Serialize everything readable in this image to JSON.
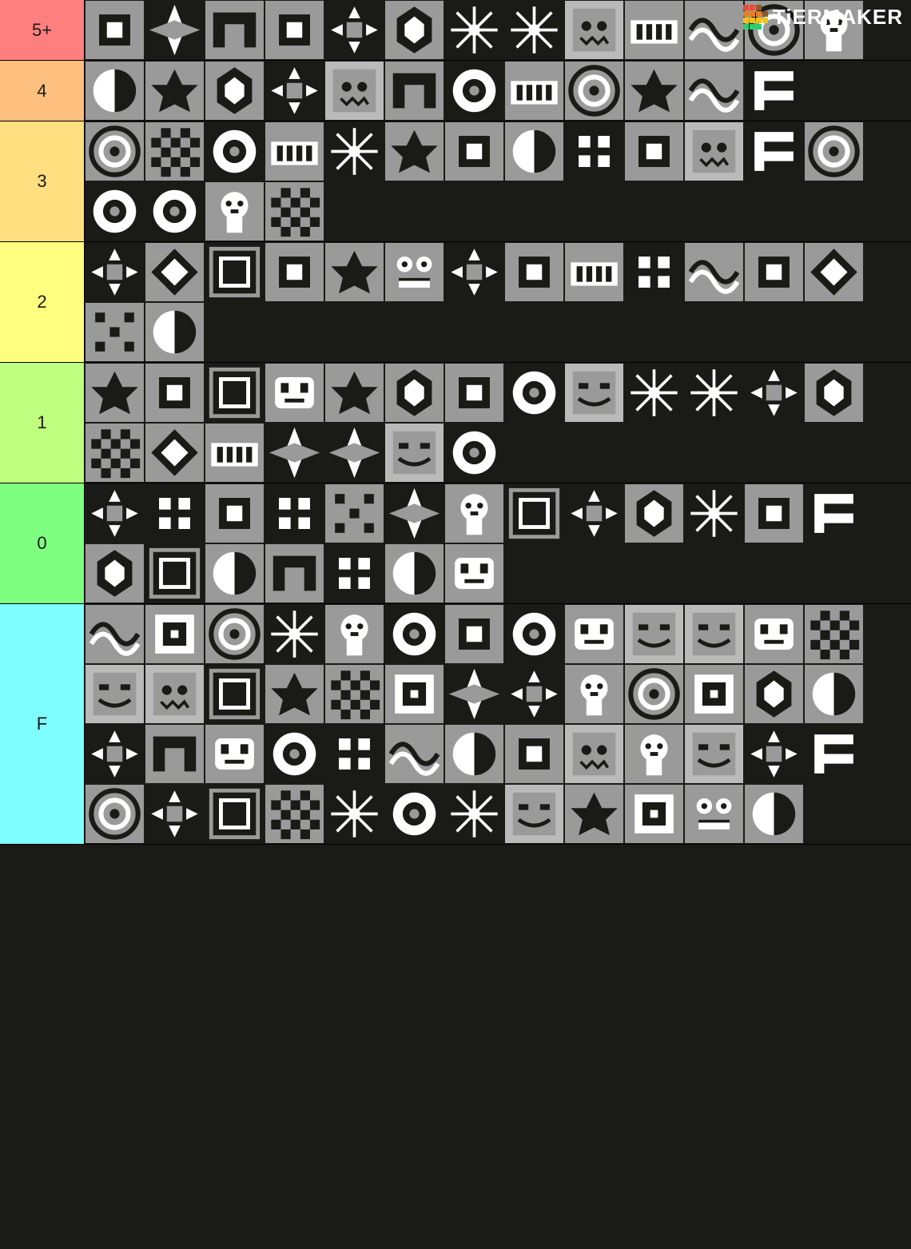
{
  "brand": {
    "name": "TiERMAKER"
  },
  "logo_grid_colors": [
    "#e74c3c",
    "#e74c3c",
    "#8b5a2b",
    "#00000000",
    "#e67e22",
    "#e67e22",
    "#e67e22",
    "#8b5a2b",
    "#f1c40f",
    "#f1c40f",
    "#f1c40f",
    "#f1c40f",
    "#2ecc71",
    "#2ecc71",
    "#2ecc71",
    "#00000000"
  ],
  "background_color": "#1a1a17",
  "icon_palette": {
    "base": "#9a9a9a",
    "dark": "#1a1a17",
    "light": "#ffffff",
    "mid": "#bababa"
  },
  "tiers": [
    {
      "label": "5+",
      "color": "#ff7f7f",
      "count": 13
    },
    {
      "label": "4",
      "color": "#ffbf7f",
      "count": 12
    },
    {
      "label": "3",
      "color": "#ffdf7f",
      "count": 17
    },
    {
      "label": "2",
      "color": "#ffff7f",
      "count": 15
    },
    {
      "label": "1",
      "color": "#bfff7f",
      "count": 20
    },
    {
      "label": "0",
      "color": "#7fff7f",
      "count": 20
    },
    {
      "label": "F",
      "color": "#7fffff",
      "count": 51
    }
  ]
}
